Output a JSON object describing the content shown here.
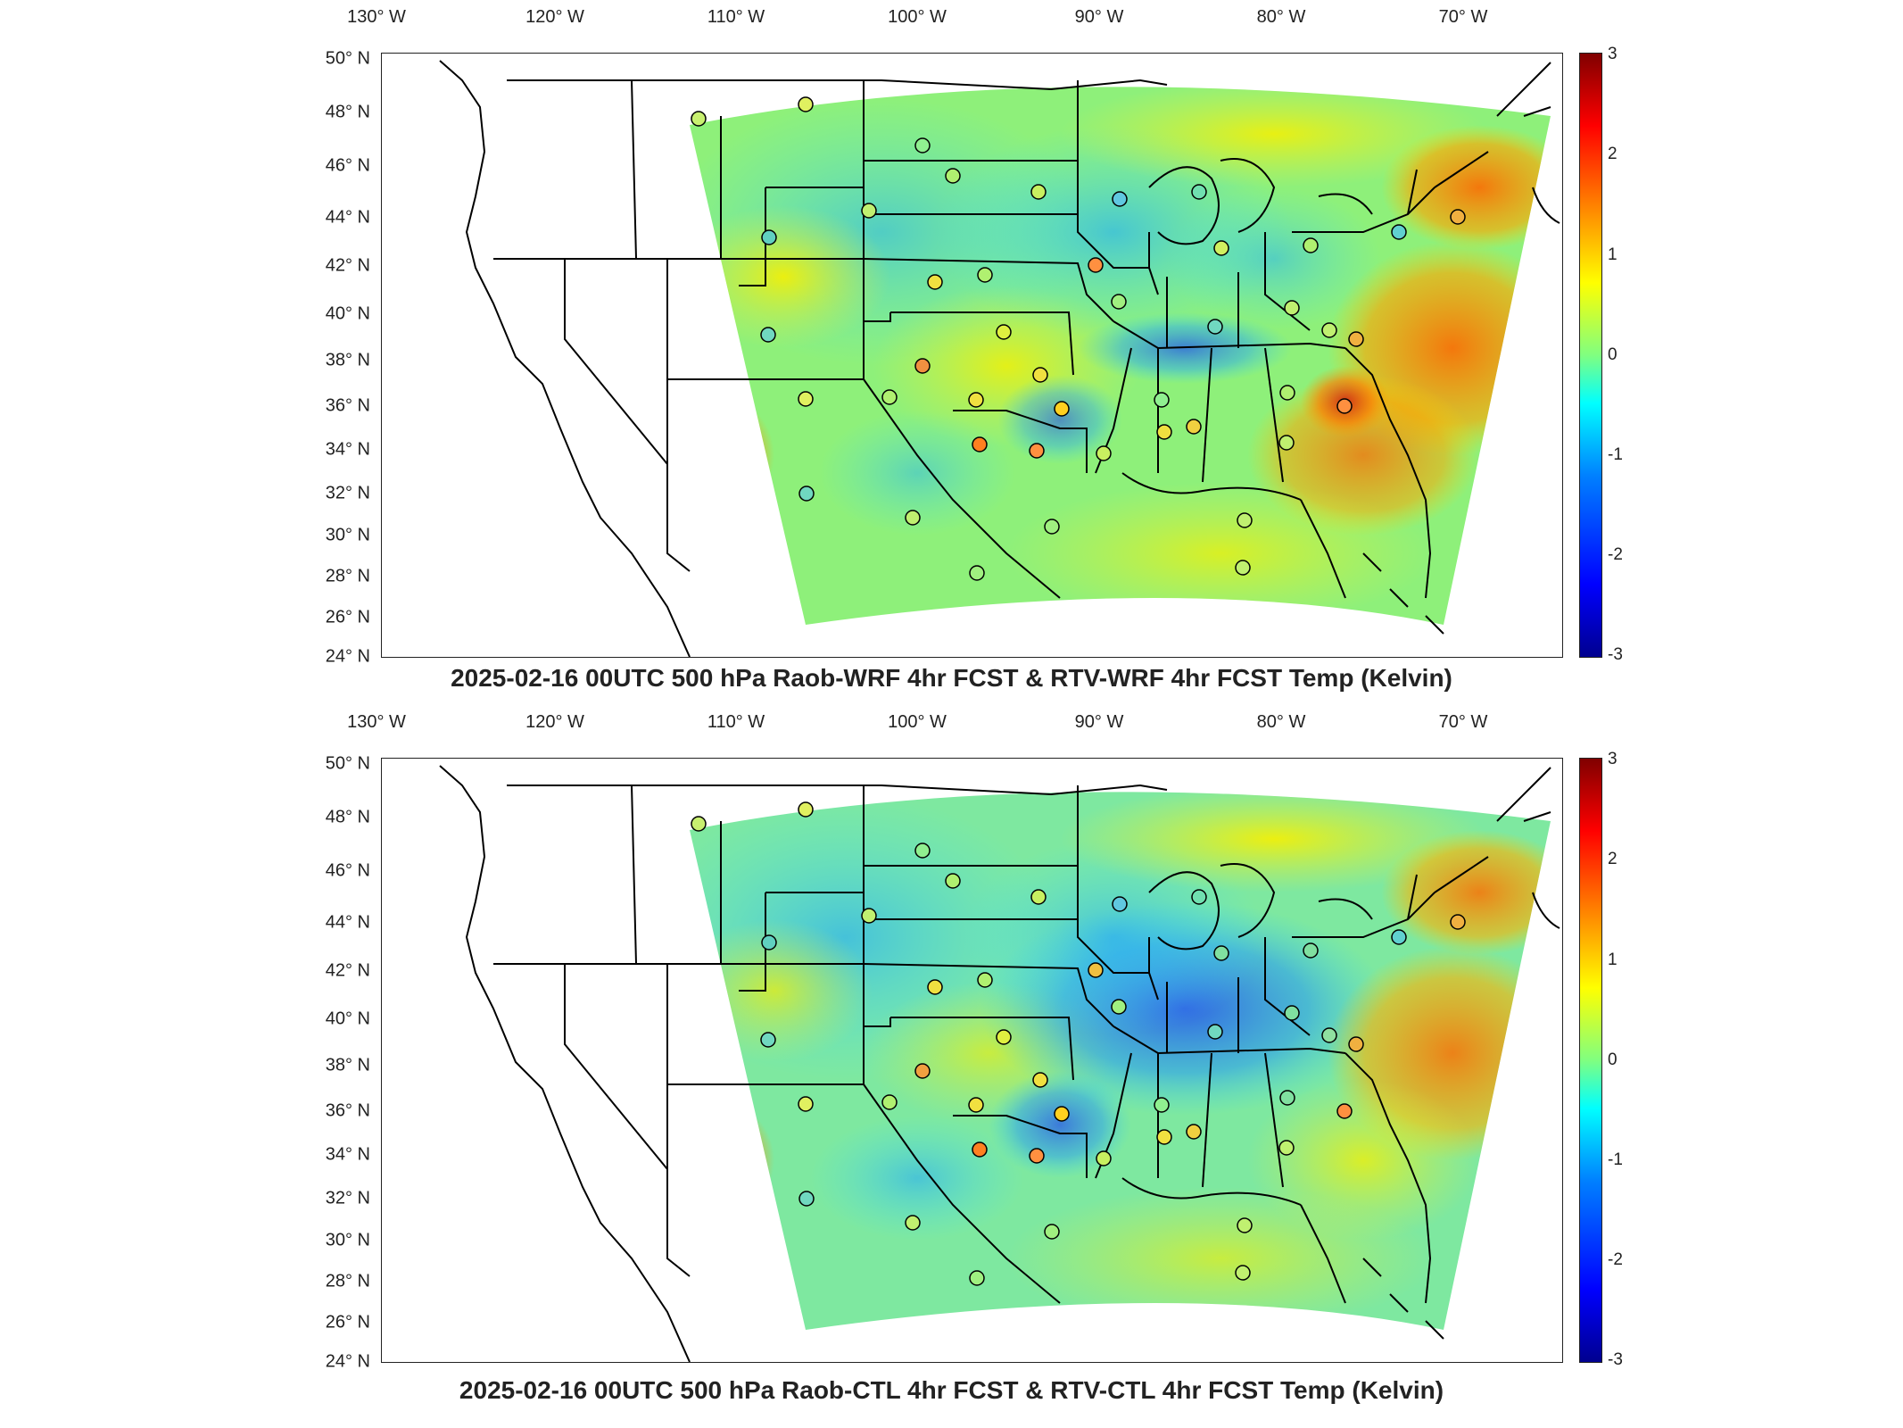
{
  "panels": [
    {
      "title": "2025-02-16 00UTC 500 hPa Raob-WRF 4hr FCST & RTV-WRF 4hr FCST Temp (Kelvin)",
      "variant": "wrf"
    },
    {
      "title": "2025-02-16 00UTC 500 hPa Raob-CTL 4hr FCST & RTV-CTL 4hr FCST Temp (Kelvin)",
      "variant": "ctl"
    }
  ],
  "axes": {
    "lon_labels": [
      "130° W",
      "120° W",
      "110° W",
      "100° W",
      "90° W",
      "80° W",
      "70° W"
    ],
    "lat_labels": [
      "50° N",
      "48° N",
      "46° N",
      "44° N",
      "42° N",
      "40° N",
      "38° N",
      "36° N",
      "34° N",
      "32° N",
      "30° N",
      "28° N",
      "26° N",
      "24° N"
    ]
  },
  "colorbar": {
    "ticks": [
      "3",
      "2",
      "1",
      "0",
      "-1",
      "-2",
      "-3"
    ],
    "range": [
      -3,
      3
    ],
    "colors": [
      "#00008f",
      "#0000ff",
      "#0080ff",
      "#00ffff",
      "#80ff80",
      "#ffff00",
      "#ff8000",
      "#ff0000",
      "#800000"
    ]
  }
}
